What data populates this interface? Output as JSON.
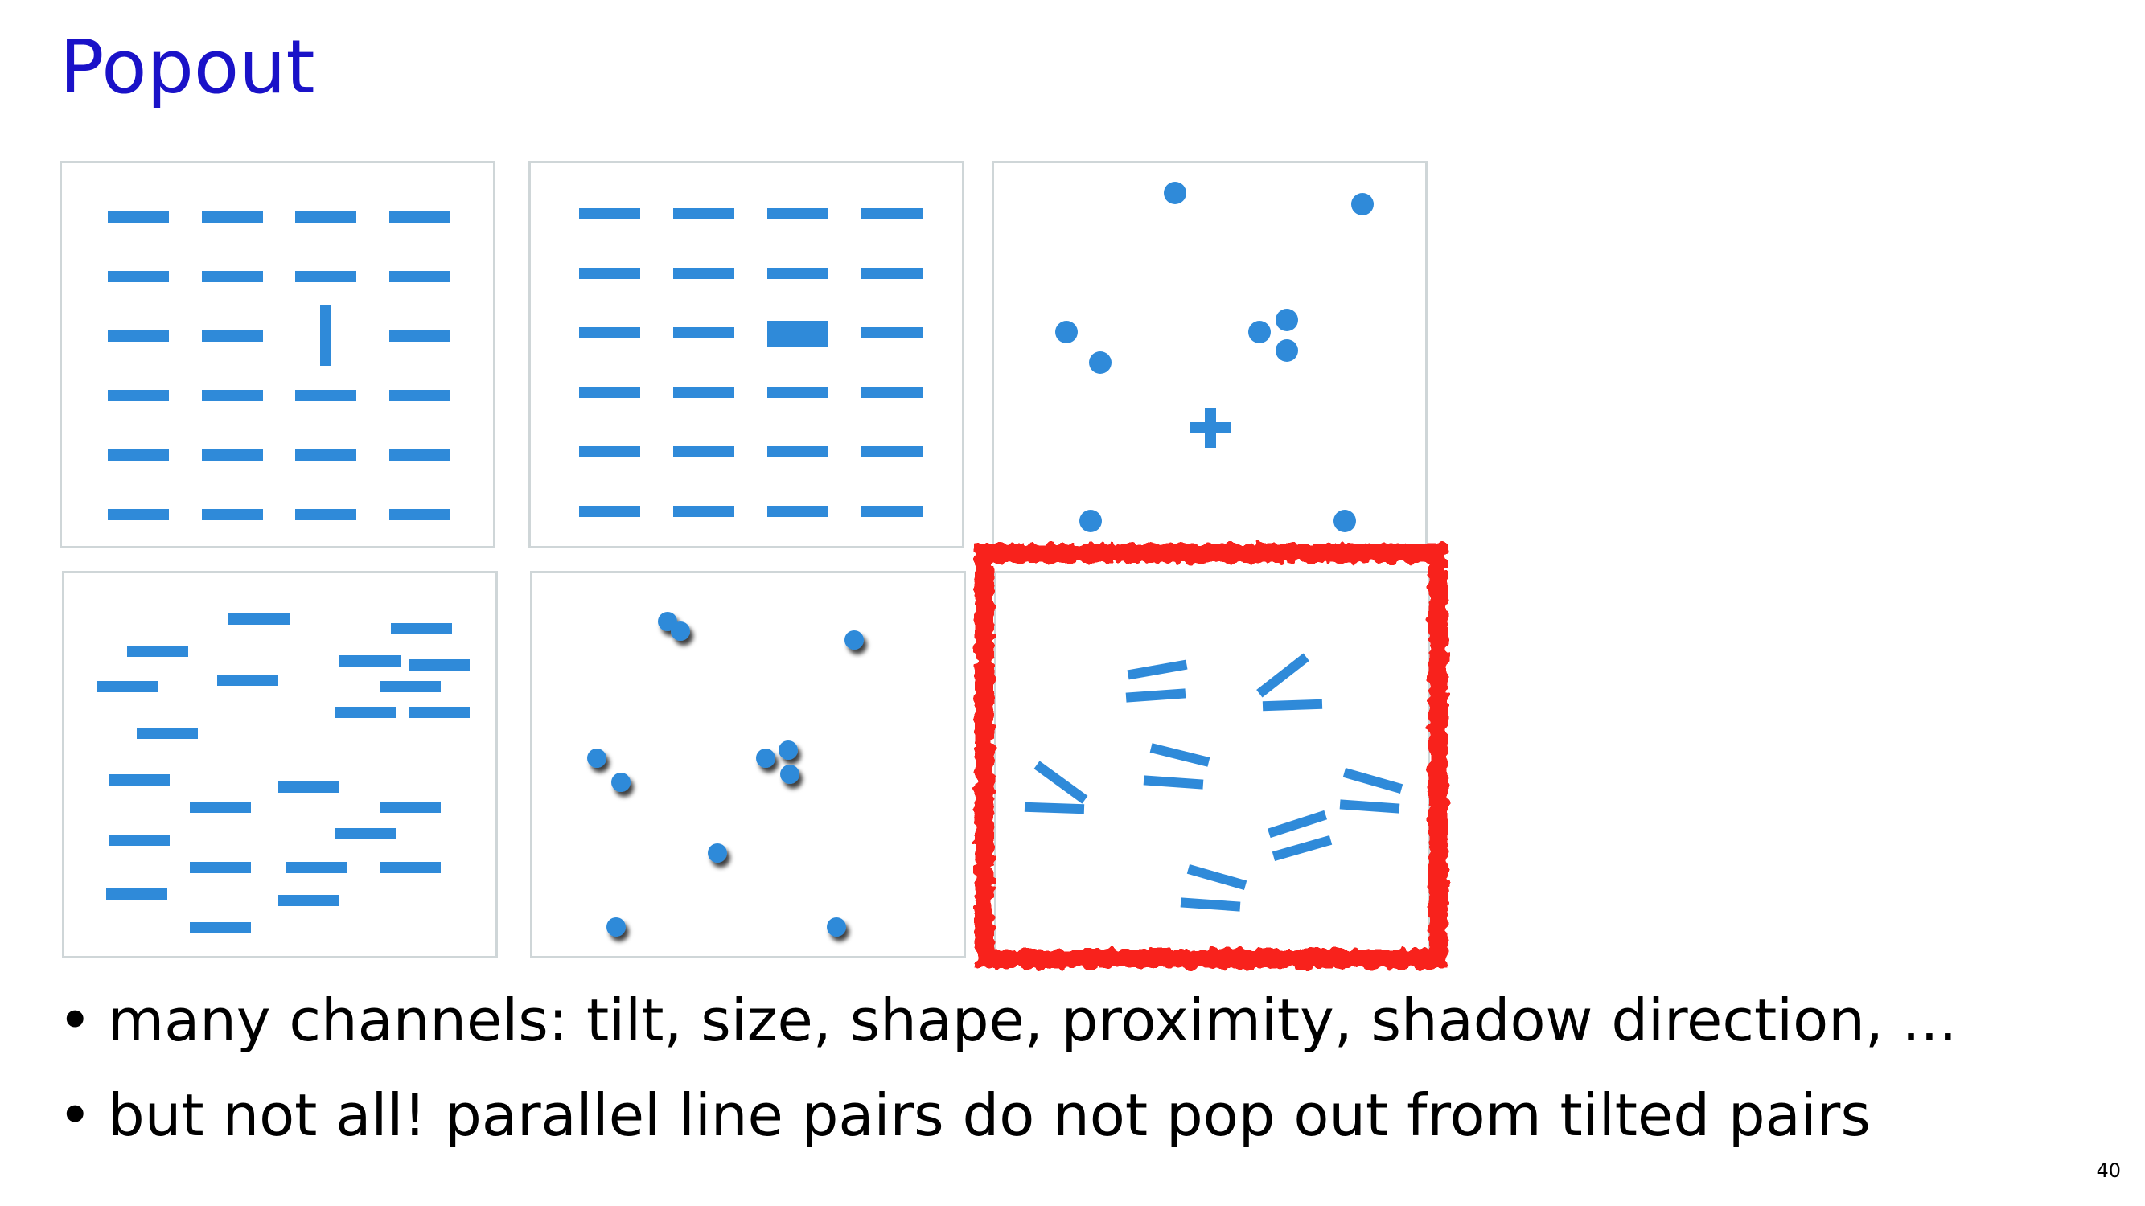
{
  "slide": {
    "title": "Popout",
    "page_number": "40"
  },
  "bullets": [
    {
      "symbol": "•",
      "text": "many channels: tilt, size, shape, proximity, shadow direction, ..."
    },
    {
      "symbol": "•",
      "text": "but not all! parallel line pairs do not pop out from tilted pairs"
    }
  ],
  "colors": {
    "title": "#1a12c8",
    "glyph": "#2f8ad9",
    "highlight": "#f8241a",
    "panel_border": "#cfd6d8"
  }
}
